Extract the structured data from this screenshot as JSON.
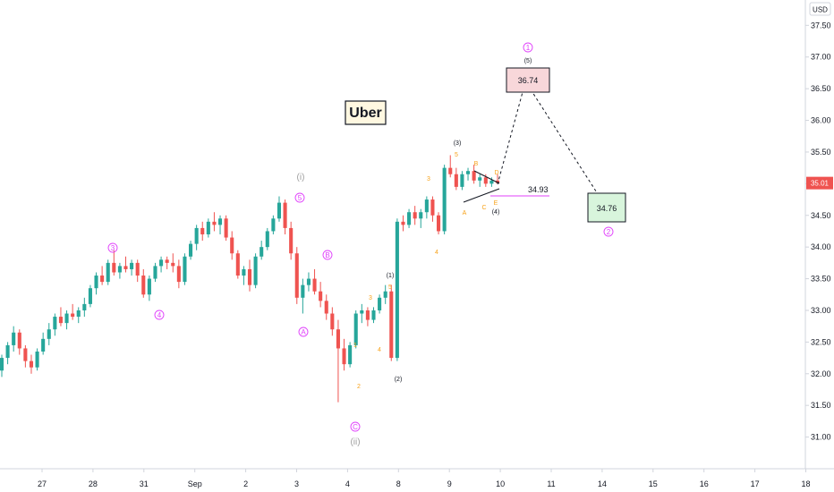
{
  "chart_data": {
    "type": "candlestick",
    "title": "Uber",
    "currency": "USD",
    "last_price": "35.01",
    "ylim": [
      30.5,
      37.9
    ],
    "grid": false,
    "y_ticks": [
      "31.00",
      "31.50",
      "32.00",
      "32.50",
      "33.00",
      "33.50",
      "34.00",
      "34.50",
      "35.00",
      "35.50",
      "36.00",
      "36.50",
      "37.00",
      "37.50"
    ],
    "x_ticks": [
      "27",
      "28",
      "31",
      "Sep",
      "2",
      "3",
      "4",
      "8",
      "9",
      "10",
      "11",
      "14",
      "15",
      "16",
      "17",
      "18"
    ],
    "candles": [
      [
        32.05,
        32.3,
        31.95,
        32.25
      ],
      [
        32.25,
        32.5,
        32.15,
        32.45
      ],
      [
        32.45,
        32.75,
        32.35,
        32.65
      ],
      [
        32.65,
        32.7,
        32.3,
        32.4
      ],
      [
        32.4,
        32.45,
        32.1,
        32.2
      ],
      [
        32.2,
        32.3,
        32.0,
        32.1
      ],
      [
        32.1,
        32.4,
        32.05,
        32.35
      ],
      [
        32.35,
        32.65,
        32.3,
        32.55
      ],
      [
        32.55,
        32.8,
        32.45,
        32.7
      ],
      [
        32.7,
        32.95,
        32.6,
        32.9
      ],
      [
        32.9,
        33.05,
        32.75,
        32.8
      ],
      [
        32.8,
        33.0,
        32.7,
        32.95
      ],
      [
        32.95,
        33.1,
        32.85,
        32.9
      ],
      [
        32.9,
        33.05,
        32.8,
        33.0
      ],
      [
        33.0,
        33.2,
        32.9,
        33.1
      ],
      [
        33.1,
        33.4,
        33.05,
        33.35
      ],
      [
        33.35,
        33.6,
        33.25,
        33.55
      ],
      [
        33.55,
        33.7,
        33.4,
        33.45
      ],
      [
        33.45,
        33.8,
        33.4,
        33.75
      ],
      [
        33.75,
        33.95,
        33.55,
        33.6
      ],
      [
        33.6,
        33.75,
        33.5,
        33.7
      ],
      [
        33.7,
        33.85,
        33.6,
        33.65
      ],
      [
        33.65,
        33.8,
        33.55,
        33.75
      ],
      [
        33.75,
        33.8,
        33.45,
        33.55
      ],
      [
        33.55,
        33.65,
        33.2,
        33.25
      ],
      [
        33.25,
        33.55,
        33.15,
        33.5
      ],
      [
        33.5,
        33.75,
        33.45,
        33.7
      ],
      [
        33.7,
        33.85,
        33.6,
        33.8
      ],
      [
        33.8,
        33.85,
        33.65,
        33.75
      ],
      [
        33.75,
        33.9,
        33.6,
        33.7
      ],
      [
        33.7,
        33.8,
        33.35,
        33.45
      ],
      [
        33.45,
        33.9,
        33.4,
        33.85
      ],
      [
        33.85,
        34.1,
        33.8,
        34.05
      ],
      [
        34.05,
        34.35,
        33.95,
        34.3
      ],
      [
        34.3,
        34.4,
        34.1,
        34.2
      ],
      [
        34.2,
        34.45,
        34.15,
        34.4
      ],
      [
        34.4,
        34.55,
        34.25,
        34.35
      ],
      [
        34.35,
        34.5,
        34.2,
        34.45
      ],
      [
        34.45,
        34.5,
        34.1,
        34.15
      ],
      [
        34.15,
        34.25,
        33.8,
        33.9
      ],
      [
        33.9,
        33.95,
        33.5,
        33.55
      ],
      [
        33.55,
        33.7,
        33.4,
        33.65
      ],
      [
        33.65,
        33.8,
        33.3,
        33.4
      ],
      [
        33.4,
        33.9,
        33.35,
        33.85
      ],
      [
        33.85,
        34.1,
        33.8,
        34.0
      ],
      [
        34.0,
        34.3,
        33.95,
        34.25
      ],
      [
        34.25,
        34.5,
        34.2,
        34.45
      ],
      [
        34.45,
        34.8,
        34.4,
        34.7
      ],
      [
        34.7,
        34.75,
        34.2,
        34.3
      ],
      [
        34.3,
        34.4,
        33.8,
        33.9
      ],
      [
        33.9,
        34.0,
        33.1,
        33.2
      ],
      [
        33.2,
        33.5,
        32.95,
        33.4
      ],
      [
        33.4,
        33.6,
        33.3,
        33.5
      ],
      [
        33.5,
        33.65,
        33.25,
        33.3
      ],
      [
        33.3,
        33.45,
        33.05,
        33.15
      ],
      [
        33.15,
        33.25,
        32.85,
        32.95
      ],
      [
        32.95,
        33.05,
        32.6,
        32.7
      ],
      [
        32.7,
        32.85,
        31.55,
        32.4
      ],
      [
        32.4,
        32.55,
        32.05,
        32.15
      ],
      [
        32.15,
        32.5,
        32.1,
        32.45
      ],
      [
        32.45,
        33.0,
        32.4,
        32.95
      ],
      [
        32.95,
        33.1,
        32.8,
        33.0
      ],
      [
        33.0,
        33.05,
        32.75,
        32.85
      ],
      [
        32.85,
        33.05,
        32.8,
        33.0
      ],
      [
        33.0,
        33.25,
        32.95,
        33.2
      ],
      [
        33.2,
        33.4,
        33.1,
        33.3
      ],
      [
        33.3,
        33.4,
        32.2,
        32.25
      ],
      [
        32.25,
        34.45,
        32.2,
        34.4
      ],
      [
        34.4,
        34.5,
        34.25,
        34.35
      ],
      [
        34.35,
        34.6,
        34.3,
        34.55
      ],
      [
        34.55,
        34.65,
        34.35,
        34.45
      ],
      [
        34.45,
        34.6,
        34.3,
        34.55
      ],
      [
        34.55,
        34.8,
        34.45,
        34.75
      ],
      [
        34.75,
        34.8,
        34.4,
        34.5
      ],
      [
        34.5,
        34.55,
        34.2,
        34.25
      ],
      [
        34.25,
        35.3,
        34.2,
        35.25
      ],
      [
        35.25,
        35.45,
        35.1,
        35.15
      ],
      [
        35.15,
        35.25,
        34.9,
        34.95
      ],
      [
        34.95,
        35.2,
        34.9,
        35.15
      ],
      [
        35.15,
        35.25,
        35.05,
        35.2
      ],
      [
        35.2,
        35.3,
        35.0,
        35.05
      ],
      [
        35.05,
        35.15,
        34.95,
        35.1
      ],
      [
        35.1,
        35.15,
        34.95,
        35.0
      ],
      [
        35.0,
        35.1,
        34.95,
        35.05
      ],
      [
        35.05,
        35.15,
        35.0,
        35.01
      ]
    ],
    "annotations": {
      "title_box": "Uber",
      "target_box": "36.74",
      "support_box": "34.76",
      "level_label": "34.93",
      "wave_1_circled": "1",
      "wave_2_circled": "2",
      "wave_3_circled": "3",
      "wave_4_circled": "4",
      "wave_5_circled": "5",
      "wave_A_circled": "A",
      "wave_B_circled": "B",
      "wave_C_circled": "C",
      "wave_i_roman": "(i)",
      "wave_ii_roman": "(ii)",
      "paren_1": "(1)",
      "paren_2": "(2)",
      "paren_3": "(3)",
      "paren_4": "(4)",
      "paren_5": "(5)",
      "minor_1": "1",
      "minor_2": "2",
      "minor_3": "3",
      "minor_4": "4",
      "minor_5": "5",
      "minor_3b": "3",
      "minor_4b": "4",
      "minor_5b": "5",
      "tri_A": "A",
      "tri_B": "B",
      "tri_C": "C",
      "tri_D": "D",
      "tri_E": "E"
    },
    "colors": {
      "up": "#26a69a",
      "down": "#ef5350",
      "magenta": "#e040fb",
      "orange": "#f7a21b",
      "gray_label": "#9e9e9e",
      "target_fill": "#f8d7da",
      "support_fill": "#d8f5dc",
      "price_tag": "#ef5350"
    }
  }
}
